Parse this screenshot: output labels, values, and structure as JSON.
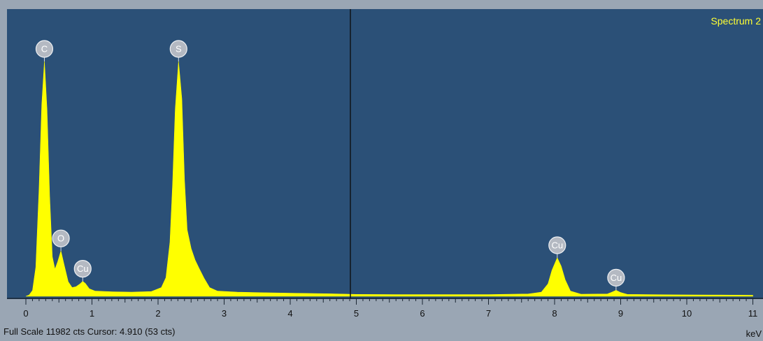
{
  "title": "Spectrum 2",
  "status": {
    "full_scale_label": "Full Scale",
    "full_scale_value": "11982 cts",
    "cursor_label": "Cursor:",
    "cursor_value": "4.910",
    "cursor_counts": "(53 cts)"
  },
  "colors": {
    "plot_background": "#2b5077",
    "spectrum_fill": "#ffff00",
    "title_text": "#ffff33",
    "marker_fill": "#b4b9c2",
    "cursor_line": "#101418"
  },
  "chart_data": {
    "type": "area",
    "xlabel": "keV",
    "ylabel": "",
    "xlim": [
      0,
      11
    ],
    "ylim": [
      0,
      11982
    ],
    "full_scale_cts": 11982,
    "cursor_kev": 4.91,
    "cursor_cts": 53,
    "x_ticks": [
      "0",
      "1",
      "2",
      "3",
      "4",
      "5",
      "6",
      "7",
      "8",
      "9",
      "10",
      "11"
    ],
    "peaks": [
      {
        "element": "C",
        "energy": 0.28,
        "counts": 11300
      },
      {
        "element": "O",
        "energy": 0.53,
        "counts": 2180
      },
      {
        "element": "Cu",
        "energy": 0.86,
        "counts": 720
      },
      {
        "element": "S",
        "energy": 2.31,
        "counts": 11300
      },
      {
        "element": "Cu",
        "energy": 8.04,
        "counts": 1850
      },
      {
        "element": "Cu",
        "energy": 8.93,
        "counts": 290
      }
    ],
    "spectrum": [
      [
        0.0,
        0
      ],
      [
        0.05,
        60
      ],
      [
        0.1,
        280
      ],
      [
        0.15,
        1400
      ],
      [
        0.2,
        5200
      ],
      [
        0.24,
        9200
      ],
      [
        0.28,
        11300
      ],
      [
        0.32,
        9000
      ],
      [
        0.36,
        4800
      ],
      [
        0.4,
        1900
      ],
      [
        0.44,
        1300
      ],
      [
        0.48,
        1650
      ],
      [
        0.53,
        2180
      ],
      [
        0.58,
        1500
      ],
      [
        0.64,
        700
      ],
      [
        0.7,
        420
      ],
      [
        0.76,
        460
      ],
      [
        0.82,
        600
      ],
      [
        0.86,
        720
      ],
      [
        0.9,
        620
      ],
      [
        0.96,
        360
      ],
      [
        1.05,
        250
      ],
      [
        1.3,
        220
      ],
      [
        1.6,
        200
      ],
      [
        1.9,
        230
      ],
      [
        2.05,
        420
      ],
      [
        2.12,
        900
      ],
      [
        2.18,
        2600
      ],
      [
        2.22,
        5400
      ],
      [
        2.26,
        9000
      ],
      [
        2.31,
        11300
      ],
      [
        2.36,
        9500
      ],
      [
        2.4,
        5600
      ],
      [
        2.44,
        3200
      ],
      [
        2.5,
        2300
      ],
      [
        2.56,
        1750
      ],
      [
        2.62,
        1350
      ],
      [
        2.7,
        850
      ],
      [
        2.78,
        420
      ],
      [
        2.9,
        250
      ],
      [
        3.2,
        200
      ],
      [
        3.6,
        170
      ],
      [
        4.0,
        150
      ],
      [
        4.6,
        120
      ],
      [
        5.0,
        90
      ],
      [
        5.6,
        80
      ],
      [
        6.4,
        80
      ],
      [
        7.0,
        80
      ],
      [
        7.6,
        110
      ],
      [
        7.8,
        200
      ],
      [
        7.9,
        600
      ],
      [
        7.96,
        1250
      ],
      [
        8.04,
        1850
      ],
      [
        8.1,
        1450
      ],
      [
        8.16,
        800
      ],
      [
        8.24,
        250
      ],
      [
        8.4,
        100
      ],
      [
        8.8,
        110
      ],
      [
        8.86,
        190
      ],
      [
        8.93,
        290
      ],
      [
        9.0,
        180
      ],
      [
        9.1,
        90
      ],
      [
        9.8,
        70
      ],
      [
        10.5,
        60
      ],
      [
        11.0,
        50
      ]
    ]
  }
}
